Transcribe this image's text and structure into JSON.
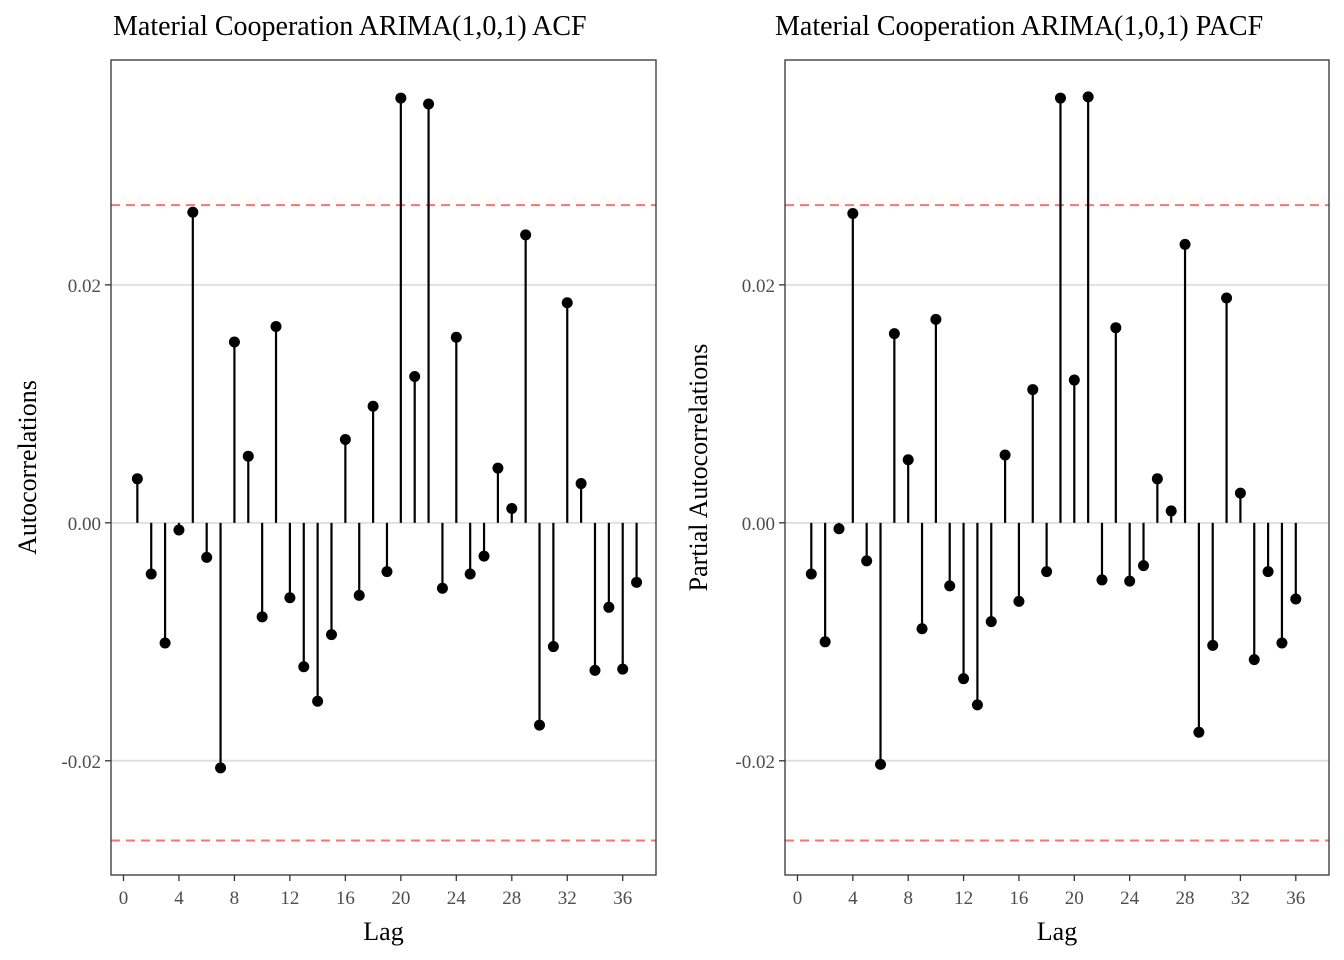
{
  "chart_data": [
    {
      "type": "stem",
      "title": "Material Cooperation ARIMA(1,0,1) ACF",
      "xlabel": "Lag",
      "ylabel": "Autocorrelations",
      "x_ticks": [
        "0",
        "4",
        "8",
        "12",
        "16",
        "20",
        "24",
        "28",
        "32",
        "36"
      ],
      "y_ticks": [
        "-0.02",
        "0.00",
        "0.02"
      ],
      "xlim": [
        -0.9,
        38.4
      ],
      "ylim": [
        -0.0296,
        0.0389
      ],
      "confidence_bounds": [
        0.0267,
        -0.0267
      ],
      "confidence_color": "#f8766d",
      "grid": "horizontal major",
      "lags": [
        1,
        2,
        3,
        4,
        5,
        6,
        7,
        8,
        9,
        10,
        11,
        12,
        13,
        14,
        15,
        16,
        17,
        18,
        19,
        20,
        21,
        22,
        23,
        24,
        25,
        26,
        27,
        28,
        29,
        30,
        31,
        32,
        33,
        34,
        35,
        36,
        37
      ],
      "values": [
        0.0037,
        -0.0043,
        -0.0101,
        -0.0006,
        0.0261,
        -0.0029,
        -0.0206,
        0.0152,
        0.0056,
        -0.0079,
        0.0165,
        -0.0063,
        -0.0121,
        -0.015,
        -0.0094,
        0.007,
        -0.0061,
        0.0098,
        -0.0041,
        0.0357,
        0.0123,
        0.0352,
        -0.0055,
        0.0156,
        -0.0043,
        -0.0028,
        0.0046,
        0.0012,
        0.0242,
        -0.017,
        -0.0104,
        0.0185,
        0.0033,
        -0.0124,
        -0.0071,
        -0.0123,
        -0.005
      ]
    },
    {
      "type": "stem",
      "title": "Material Cooperation ARIMA(1,0,1) PACF",
      "xlabel": "Lag",
      "ylabel": "Partial Autocorrelations",
      "x_ticks": [
        "0",
        "4",
        "8",
        "12",
        "16",
        "20",
        "24",
        "28",
        "32",
        "36"
      ],
      "y_ticks": [
        "-0.02",
        "0.00",
        "0.02"
      ],
      "xlim": [
        -0.9,
        38.4
      ],
      "ylim": [
        -0.0296,
        0.0389
      ],
      "confidence_bounds": [
        0.0267,
        -0.0267
      ],
      "confidence_color": "#f8766d",
      "grid": "horizontal major",
      "lags": [
        1,
        2,
        3,
        4,
        5,
        6,
        7,
        8,
        9,
        10,
        11,
        12,
        13,
        14,
        15,
        16,
        17,
        18,
        19,
        20,
        21,
        22,
        23,
        24,
        25,
        26,
        27,
        28,
        29,
        30,
        31,
        32,
        33,
        34,
        35,
        36
      ],
      "values": [
        -0.0043,
        -0.01,
        -0.0005,
        0.026,
        -0.0032,
        -0.0203,
        0.0159,
        0.0053,
        -0.0089,
        0.0171,
        -0.0053,
        -0.0131,
        -0.0153,
        -0.0083,
        0.0057,
        -0.0066,
        0.0112,
        -0.0041,
        0.0357,
        0.012,
        0.0358,
        -0.0048,
        0.0164,
        -0.0049,
        -0.0036,
        0.0037,
        0.001,
        0.0234,
        -0.0176,
        -0.0103,
        0.0189,
        0.0025,
        -0.0115,
        -0.0041,
        -0.0101,
        -0.0064
      ]
    }
  ]
}
